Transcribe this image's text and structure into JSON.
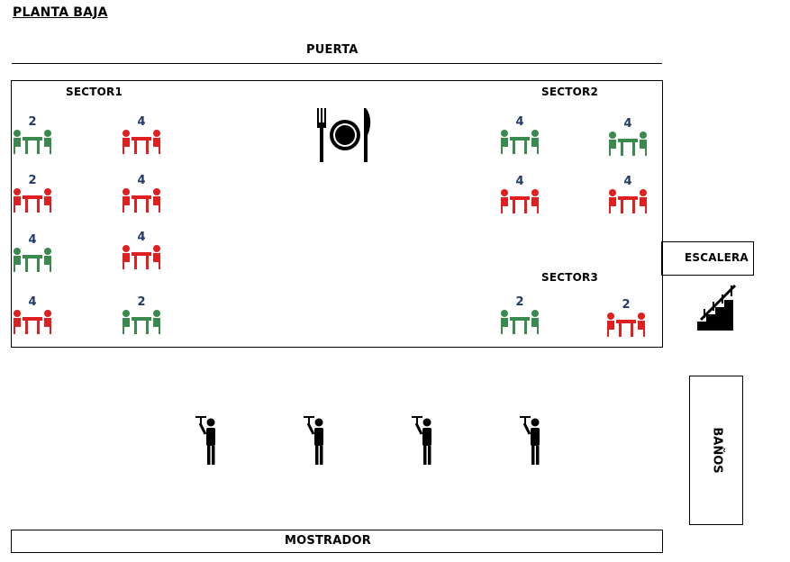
{
  "title": "PLANTA BAJA",
  "door_label": "PUERTA",
  "sectors": [
    "SECTOR1",
    "SECTOR2",
    "SECTOR3"
  ],
  "stairs_label": "ESCALERA",
  "bathrooms_label": "BAÑOS",
  "counter_label": "MOSTRADOR",
  "colors": {
    "available": "#3a8a4e",
    "occupied": "#e02020",
    "seat_number": "#1f3a6b"
  },
  "icons": [
    "restaurant-plate-icon",
    "stairs-icon",
    "waiter-icon",
    "dining-table-icon"
  ],
  "tables": [
    {
      "seats": "2",
      "status": "available"
    },
    {
      "seats": "4",
      "status": "occupied"
    },
    {
      "seats": "2",
      "status": "occupied"
    },
    {
      "seats": "4",
      "status": "occupied"
    },
    {
      "seats": "4",
      "status": "available"
    },
    {
      "seats": "4",
      "status": "occupied"
    },
    {
      "seats": "4",
      "status": "occupied"
    },
    {
      "seats": "2",
      "status": "available"
    },
    {
      "seats": "4",
      "status": "available"
    },
    {
      "seats": "4",
      "status": "available"
    },
    {
      "seats": "4",
      "status": "occupied"
    },
    {
      "seats": "4",
      "status": "occupied"
    },
    {
      "seats": "2",
      "status": "available"
    },
    {
      "seats": "2",
      "status": "occupied"
    }
  ],
  "waiters": 4
}
